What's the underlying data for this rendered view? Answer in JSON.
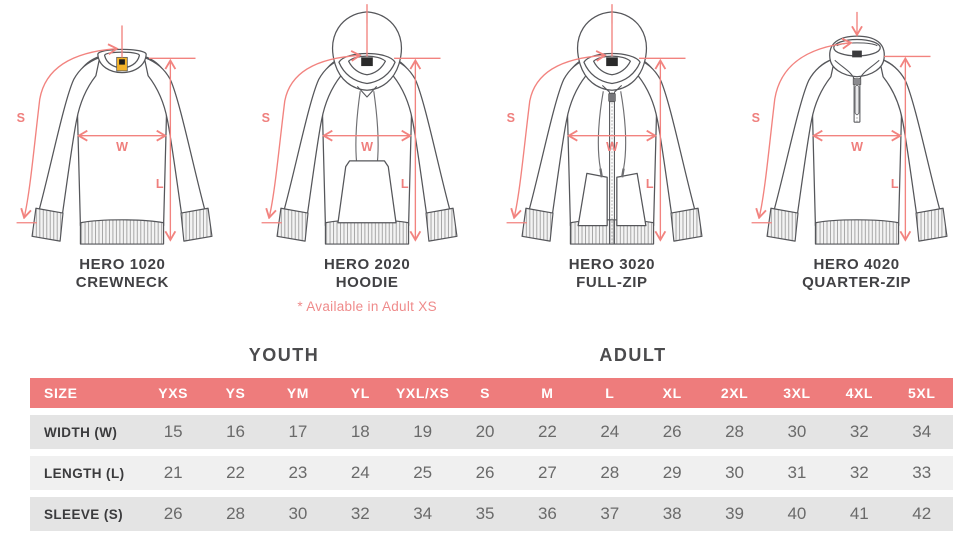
{
  "colors": {
    "table_header_pink": "#ee7c7c",
    "annotation_pink": "#f2837f",
    "note_pink": "#ef8b8b",
    "line_art_gray": "#55565a",
    "row_dark": "#e4e4e4",
    "row_light": "#f0f0f0",
    "tag_yellow": "#f3b229"
  },
  "products": [
    {
      "model": "HERO 1020",
      "style": "CREWNECK",
      "note": ""
    },
    {
      "model": "HERO 2020",
      "style": "HOODIE",
      "note": "* Available in Adult XS"
    },
    {
      "model": "HERO 3020",
      "style": "FULL-ZIP",
      "note": ""
    },
    {
      "model": "HERO 4020",
      "style": "QUARTER-ZIP",
      "note": ""
    }
  ],
  "measurement_labels": {
    "sleeve": "S",
    "width": "W",
    "length": "L"
  },
  "size_chart": {
    "group_headers": [
      {
        "label": "YOUTH"
      },
      {
        "label": "ADULT"
      }
    ],
    "columns": [
      "SIZE",
      "YXS",
      "YS",
      "YM",
      "YL",
      "YXL/XS",
      "S",
      "M",
      "L",
      "XL",
      "2XL",
      "3XL",
      "4XL",
      "5XL"
    ],
    "rows": [
      {
        "label": "WIDTH (W)",
        "values": [
          15,
          16,
          17,
          18,
          19,
          20,
          22,
          24,
          26,
          28,
          30,
          32,
          34
        ]
      },
      {
        "label": "LENGTH (L)",
        "values": [
          21,
          22,
          23,
          24,
          25,
          26,
          27,
          28,
          29,
          30,
          31,
          32,
          33
        ]
      },
      {
        "label": "SLEEVE (S)",
        "values": [
          26,
          28,
          30,
          32,
          34,
          35,
          36,
          37,
          38,
          39,
          40,
          41,
          42
        ]
      }
    ]
  }
}
